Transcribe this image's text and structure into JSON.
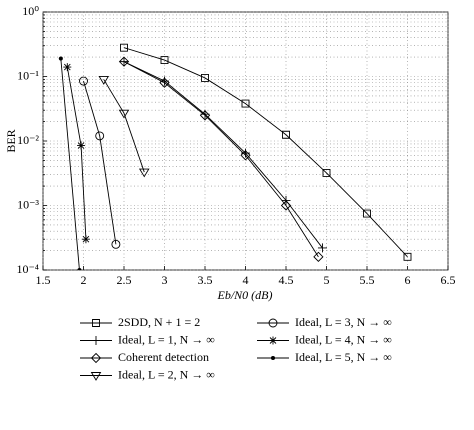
{
  "chart_data": {
    "type": "line",
    "x_label": "Eb/N0 (dB)",
    "y_label": "BER",
    "xlim": [
      1.5,
      6.5
    ],
    "xticks": [
      1.5,
      2,
      2.5,
      3,
      3.5,
      4,
      4.5,
      5,
      5.5,
      6,
      6.5
    ],
    "ylim": [
      0.0001,
      1
    ],
    "yscale": "log",
    "yticks": [
      {
        "value": 0.0001,
        "label": "10⁻⁴"
      },
      {
        "value": 0.001,
        "label": "10⁻³"
      },
      {
        "value": 0.01,
        "label": "10⁻²"
      },
      {
        "value": 0.1,
        "label": "10⁻¹"
      },
      {
        "value": 1,
        "label": "10⁰"
      }
    ],
    "grid": true,
    "minor_grid": true,
    "legend_position": "below",
    "series": [
      {
        "name": "2SDD, N + 1 = 2",
        "color": "#000000",
        "marker": "square",
        "x": [
          2.5,
          3,
          3.5,
          4,
          4.5,
          5,
          5.5,
          6
        ],
        "values": [
          0.28,
          0.18,
          0.095,
          0.038,
          0.0125,
          0.0032,
          0.00075,
          0.00016
        ]
      },
      {
        "name": "Ideal, L = 1, N → ∞",
        "color": "#000000",
        "marker": "plus",
        "x": [
          2.5,
          3,
          3.5,
          4,
          4.5,
          4.95
        ],
        "values": [
          0.17,
          0.085,
          0.026,
          0.0065,
          0.0012,
          0.00022
        ]
      },
      {
        "name": "Coherent detection",
        "color": "#000000",
        "marker": "diamond",
        "x": [
          2.5,
          3,
          3.5,
          4,
          4.5,
          4.9
        ],
        "values": [
          0.17,
          0.08,
          0.025,
          0.006,
          0.001,
          0.00016
        ]
      },
      {
        "name": "Ideal, L = 2, N → ∞",
        "color": "#000000",
        "marker": "triangle-down",
        "x": [
          2.25,
          2.5,
          2.75
        ],
        "values": [
          0.09,
          0.027,
          0.0033
        ]
      },
      {
        "name": "Ideal, L = 3, N → ∞",
        "color": "#000000",
        "marker": "circle",
        "x": [
          2.0,
          2.2,
          2.4
        ],
        "values": [
          0.085,
          0.012,
          0.00025
        ]
      },
      {
        "name": "Ideal, L = 4, N → ∞",
        "color": "#000000",
        "marker": "asterisk",
        "x": [
          1.8,
          1.97,
          2.03
        ],
        "values": [
          0.14,
          0.0085,
          0.0003
        ]
      },
      {
        "name": "Ideal, L = 5, N → ∞",
        "color": "#000000",
        "marker": "dot",
        "x": [
          1.72,
          1.95
        ],
        "values": [
          0.19,
          0.0001
        ]
      }
    ]
  }
}
